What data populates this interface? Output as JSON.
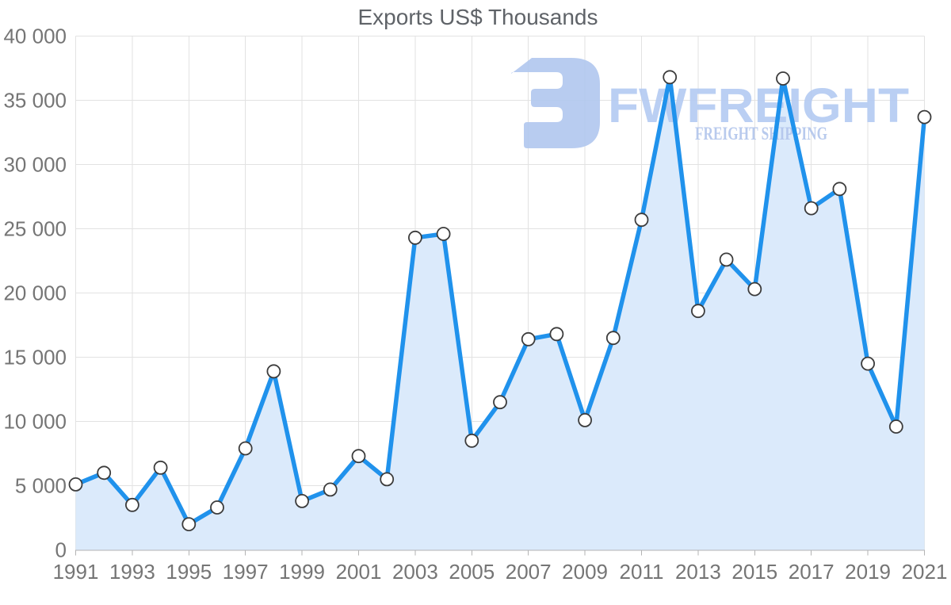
{
  "chart_data": {
    "type": "area",
    "title": "Exports US$ Thousands",
    "xlabel": "",
    "ylabel": "",
    "x": [
      1991,
      1992,
      1993,
      1994,
      1995,
      1996,
      1997,
      1998,
      1999,
      2000,
      2001,
      2002,
      2003,
      2004,
      2005,
      2006,
      2007,
      2008,
      2009,
      2010,
      2011,
      2012,
      2013,
      2014,
      2015,
      2016,
      2017,
      2018,
      2019,
      2020,
      2021
    ],
    "series": [
      {
        "name": "Exports US$ Thousands",
        "values": [
          5100,
          6000,
          3500,
          6400,
          2000,
          3300,
          7900,
          13900,
          3800,
          4700,
          7300,
          5500,
          24300,
          24600,
          8500,
          11500,
          16400,
          16800,
          10100,
          16500,
          25700,
          36800,
          18600,
          22600,
          20300,
          36700,
          26600,
          28100,
          14500,
          9600,
          33700
        ]
      }
    ],
    "ylim": [
      0,
      40000
    ],
    "ytick_step": 5000,
    "ytick_labels": [
      "0",
      "5 000",
      "10 000",
      "15 000",
      "20 000",
      "25 000",
      "30 000",
      "35 000",
      "40 000"
    ],
    "xtick_labels": [
      "1991",
      "1993",
      "1995",
      "1997",
      "1999",
      "2001",
      "2003",
      "2005",
      "2007",
      "2009",
      "2011",
      "2013",
      "2015",
      "2017",
      "2019",
      "2021"
    ],
    "grid": "on",
    "legend": "none",
    "marker_style": "open-circle",
    "colors": {
      "line": "#2092ec",
      "fill": "#dbeafb",
      "marker_fill": "#ffffff",
      "marker_stroke": "#3c3c3c",
      "grid": "#e2e2e2",
      "axis": "#b3b3b3",
      "tick_text": "#757575",
      "title_text": "#5f6368"
    }
  },
  "watermark": {
    "title": "FWFREIGHT",
    "subtitle": "FREIGHT SHIPPING",
    "logo_icon": "freight-logo",
    "color": "#b2c8ef"
  }
}
